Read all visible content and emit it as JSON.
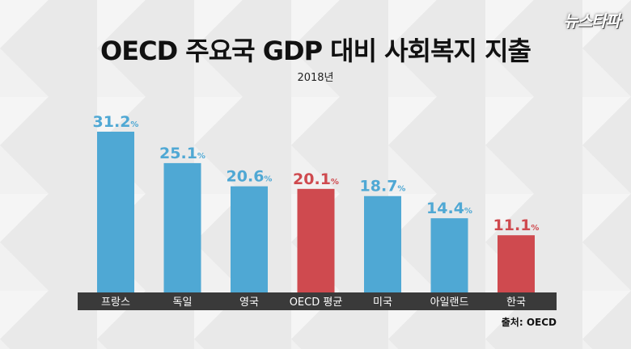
{
  "brand": {
    "logo_text": "뉴스타파"
  },
  "chart_data": {
    "type": "bar",
    "title": "OECD 주요국 GDP 대비 사회복지 지출",
    "subtitle": "2018년",
    "unit": "%",
    "categories": [
      "프랑스",
      "독일",
      "영국",
      "OECD 평균",
      "미국",
      "아일랜드",
      "한국"
    ],
    "values": [
      31.2,
      25.1,
      20.6,
      20.1,
      18.7,
      14.4,
      11.1
    ],
    "highlight": [
      false,
      false,
      false,
      true,
      false,
      false,
      true
    ],
    "colors": {
      "default": "#4fa8d4",
      "highlight": "#cf4a4f",
      "axis_band": "#3a3a3a"
    },
    "ylim": [
      0,
      31.2
    ],
    "grid": false,
    "source": "출처: OECD"
  }
}
